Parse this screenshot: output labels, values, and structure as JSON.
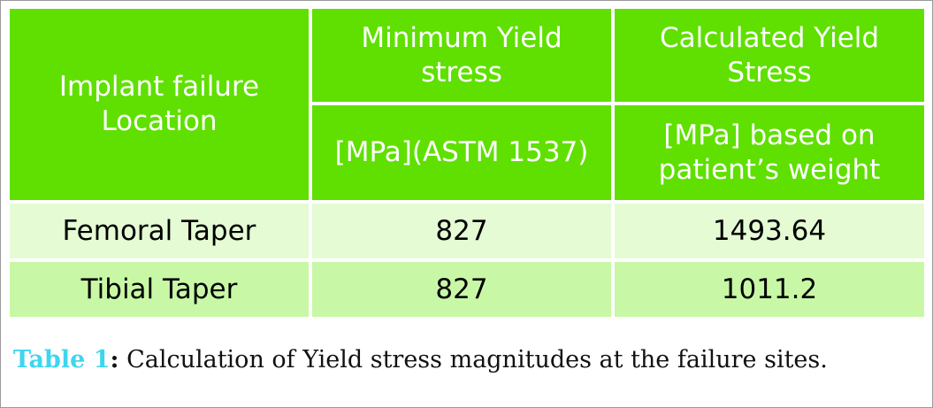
{
  "table": {
    "header": {
      "col1": [
        "Implant failure",
        "Location"
      ],
      "col2_top": [
        "Minimum Yield",
        "stress"
      ],
      "col2_bottom": "[MPa](ASTM 1537)",
      "col3_top": [
        "Calculated Yield",
        "Stress"
      ],
      "col3_bottom": [
        "[MPa] based on",
        "patient’s weight"
      ]
    },
    "rows": [
      {
        "location": "Femoral Taper",
        "min_yield": "827",
        "calc_yield": "1493.64"
      },
      {
        "location": "Tibial Taper",
        "min_yield": "827",
        "calc_yield": "1011.2"
      }
    ]
  },
  "caption": {
    "label": "Table 1",
    "separator": ":",
    "text": " Calculation of Yield stress magnitudes at the failure sites."
  },
  "colors": {
    "header_bg": "#5fe000",
    "row_light": "#e4fbd4",
    "row_medium": "#c8f8a6",
    "caption_label": "#3ed6ee"
  }
}
